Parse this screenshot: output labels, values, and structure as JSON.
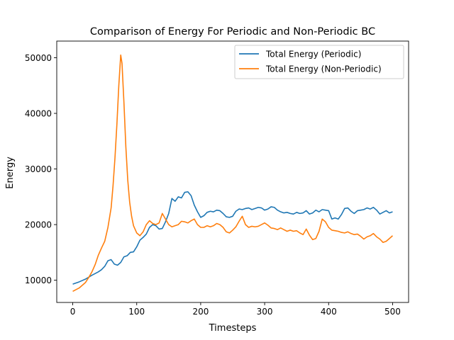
{
  "chart_data": {
    "type": "line",
    "title": "Comparison of Energy For Periodic and Non-Periodic BC",
    "xlabel": "Timesteps",
    "ylabel": "Energy",
    "xlim": [
      -25,
      525
    ],
    "ylim": [
      6000,
      53000
    ],
    "xticks": [
      0,
      100,
      200,
      300,
      400,
      500
    ],
    "yticks": [
      10000,
      20000,
      30000,
      40000,
      50000
    ],
    "grid": false,
    "legend_position": "top-right",
    "series": [
      {
        "name": "Total Energy (Periodic)",
        "color": "#1f77b4",
        "x": [
          0,
          10,
          20,
          30,
          40,
          45,
          50,
          55,
          60,
          65,
          70,
          75,
          80,
          85,
          90,
          95,
          100,
          105,
          110,
          115,
          120,
          125,
          130,
          135,
          140,
          145,
          150,
          155,
          160,
          165,
          170,
          175,
          180,
          185,
          190,
          195,
          200,
          205,
          210,
          215,
          220,
          225,
          230,
          235,
          240,
          245,
          250,
          255,
          260,
          265,
          270,
          275,
          280,
          285,
          290,
          295,
          300,
          305,
          310,
          315,
          320,
          325,
          330,
          335,
          340,
          345,
          350,
          355,
          360,
          365,
          370,
          375,
          380,
          385,
          390,
          395,
          400,
          405,
          410,
          415,
          420,
          425,
          430,
          435,
          440,
          445,
          450,
          455,
          460,
          465,
          470,
          475,
          480,
          485,
          490,
          495,
          500
        ],
        "y": [
          9300,
          9700,
          10200,
          10900,
          11500,
          11900,
          12500,
          13500,
          13700,
          12900,
          12700,
          13200,
          14200,
          14400,
          15000,
          15100,
          16000,
          17200,
          17700,
          18300,
          19500,
          20000,
          19800,
          19200,
          19300,
          20500,
          22000,
          24700,
          24200,
          25000,
          24800,
          25800,
          25900,
          25200,
          23500,
          22300,
          21300,
          21600,
          22200,
          22400,
          22300,
          22600,
          22500,
          22000,
          21400,
          21300,
          21500,
          22400,
          22800,
          22700,
          22900,
          23000,
          22700,
          22900,
          23100,
          23000,
          22600,
          22800,
          23200,
          23100,
          22600,
          22300,
          22100,
          22200,
          22000,
          21900,
          22200,
          22000,
          22100,
          22500,
          21900,
          22100,
          22600,
          22300,
          22700,
          22600,
          22500,
          21000,
          21200,
          21000,
          21800,
          22900,
          23000,
          22400,
          22000,
          22500,
          22600,
          22700,
          23000,
          22800,
          23100,
          22600,
          21900,
          22200,
          22500,
          22100,
          22300
        ]
      },
      {
        "name": "Total Energy (Non-Periodic)",
        "color": "#ff7f0e",
        "x": [
          0,
          10,
          20,
          25,
          30,
          35,
          40,
          45,
          50,
          55,
          60,
          63,
          66,
          69,
          72,
          75,
          77,
          80,
          83,
          86,
          89,
          92,
          95,
          100,
          105,
          110,
          115,
          120,
          125,
          130,
          135,
          140,
          145,
          150,
          155,
          160,
          165,
          170,
          175,
          180,
          185,
          190,
          195,
          200,
          205,
          210,
          215,
          220,
          225,
          230,
          235,
          240,
          245,
          250,
          255,
          260,
          265,
          270,
          275,
          280,
          285,
          290,
          295,
          300,
          305,
          310,
          315,
          320,
          325,
          330,
          335,
          340,
          345,
          350,
          355,
          360,
          365,
          370,
          375,
          380,
          385,
          390,
          395,
          400,
          405,
          410,
          415,
          420,
          425,
          430,
          435,
          440,
          445,
          450,
          455,
          460,
          465,
          470,
          475,
          480,
          485,
          490,
          495,
          500
        ],
        "y": [
          8000,
          8600,
          9600,
          10500,
          11500,
          12800,
          14500,
          15800,
          17000,
          19500,
          23000,
          27000,
          32000,
          38000,
          45000,
          50500,
          49000,
          42000,
          34000,
          28000,
          24000,
          21500,
          19800,
          18500,
          18000,
          18700,
          20000,
          20700,
          20200,
          20000,
          20300,
          22000,
          21000,
          20000,
          19600,
          19800,
          20000,
          20600,
          20500,
          20300,
          20700,
          21000,
          20000,
          19500,
          19500,
          19800,
          19600,
          19800,
          20200,
          20000,
          19500,
          18700,
          18500,
          19000,
          19600,
          20600,
          21500,
          20000,
          19500,
          19700,
          19600,
          19700,
          20000,
          20300,
          19900,
          19400,
          19300,
          19100,
          19400,
          19100,
          18800,
          19000,
          18800,
          18900,
          18500,
          18200,
          19200,
          18100,
          17300,
          17500,
          18800,
          21000,
          20500,
          19500,
          19000,
          18900,
          18800,
          18600,
          18500,
          18700,
          18400,
          18200,
          18300,
          17900,
          17400,
          17800,
          18000,
          18400,
          17800,
          17400,
          16800,
          17000,
          17500,
          18000
        ]
      }
    ]
  }
}
